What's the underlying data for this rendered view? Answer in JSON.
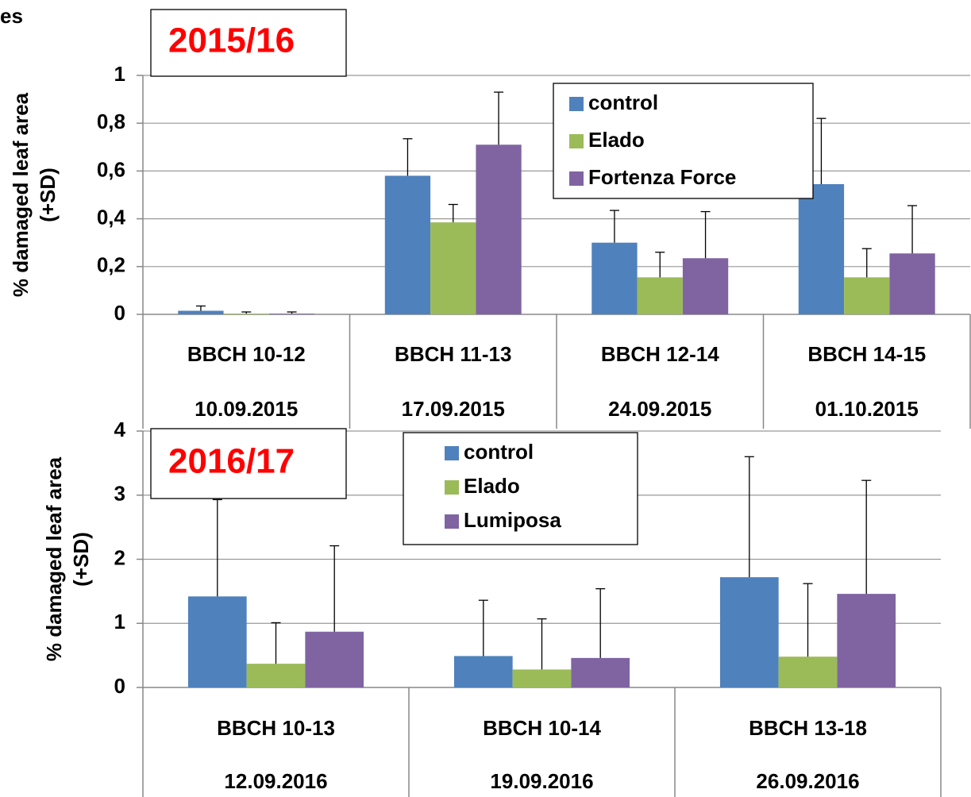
{
  "caption": "es",
  "chart_data": [
    {
      "type": "bar",
      "title": "2015/16",
      "y_label": "% damaged leaf area (+SD)",
      "categories": [
        "BBCH 10-12",
        "BBCH 11-13",
        "BBCH 12-14",
        "BBCH 14-15"
      ],
      "dates": [
        "10.09.2015",
        "17.09.2015",
        "24.09.2015",
        "01.10.2015"
      ],
      "series": [
        {
          "name": "control",
          "color": "#4f81bd",
          "values": [
            0.015,
            0.58,
            0.3,
            0.545
          ],
          "errors": [
            0.02,
            0.155,
            0.135,
            0.275
          ]
        },
        {
          "name": "Elado",
          "color": "#9bbb59",
          "values": [
            0.003,
            0.385,
            0.155,
            0.155
          ],
          "errors": [
            0.007,
            0.075,
            0.105,
            0.12
          ]
        },
        {
          "name": "Fortenza Force",
          "color": "#8064a2",
          "values": [
            0.003,
            0.71,
            0.235,
            0.255
          ],
          "errors": [
            0.007,
            0.22,
            0.195,
            0.2
          ]
        }
      ],
      "ylim": [
        0,
        1
      ],
      "yticks": [
        0,
        {
          "value": 0.2,
          "label": "0,2"
        },
        {
          "value": 0.4,
          "label": "0,4"
        },
        {
          "value": 0.6,
          "label": "0,6"
        },
        {
          "value": 0.8,
          "label": "0,8"
        },
        1
      ],
      "grid": true
    },
    {
      "type": "bar",
      "title": "2016/17",
      "y_label": "% damaged leaf area (+SD)",
      "categories": [
        "BBCH 10-13",
        "BBCH 10-14",
        "BBCH 13-18"
      ],
      "dates": [
        "12.09.2016",
        "19.09.2016",
        "26.09.2016"
      ],
      "series": [
        {
          "name": "control",
          "color": "#4f81bd",
          "values": [
            1.42,
            0.49,
            1.72
          ],
          "errors": [
            1.51,
            0.87,
            1.88
          ]
        },
        {
          "name": "Elado",
          "color": "#9bbb59",
          "values": [
            0.37,
            0.28,
            0.48
          ],
          "errors": [
            0.64,
            0.79,
            1.14
          ]
        },
        {
          "name": "Lumiposa",
          "color": "#8064a2",
          "values": [
            0.87,
            0.46,
            1.46
          ],
          "errors": [
            1.34,
            1.08,
            1.77
          ]
        }
      ],
      "ylim": [
        0,
        4
      ],
      "yticks": [
        0,
        1,
        2,
        3,
        4
      ],
      "grid": true
    }
  ]
}
